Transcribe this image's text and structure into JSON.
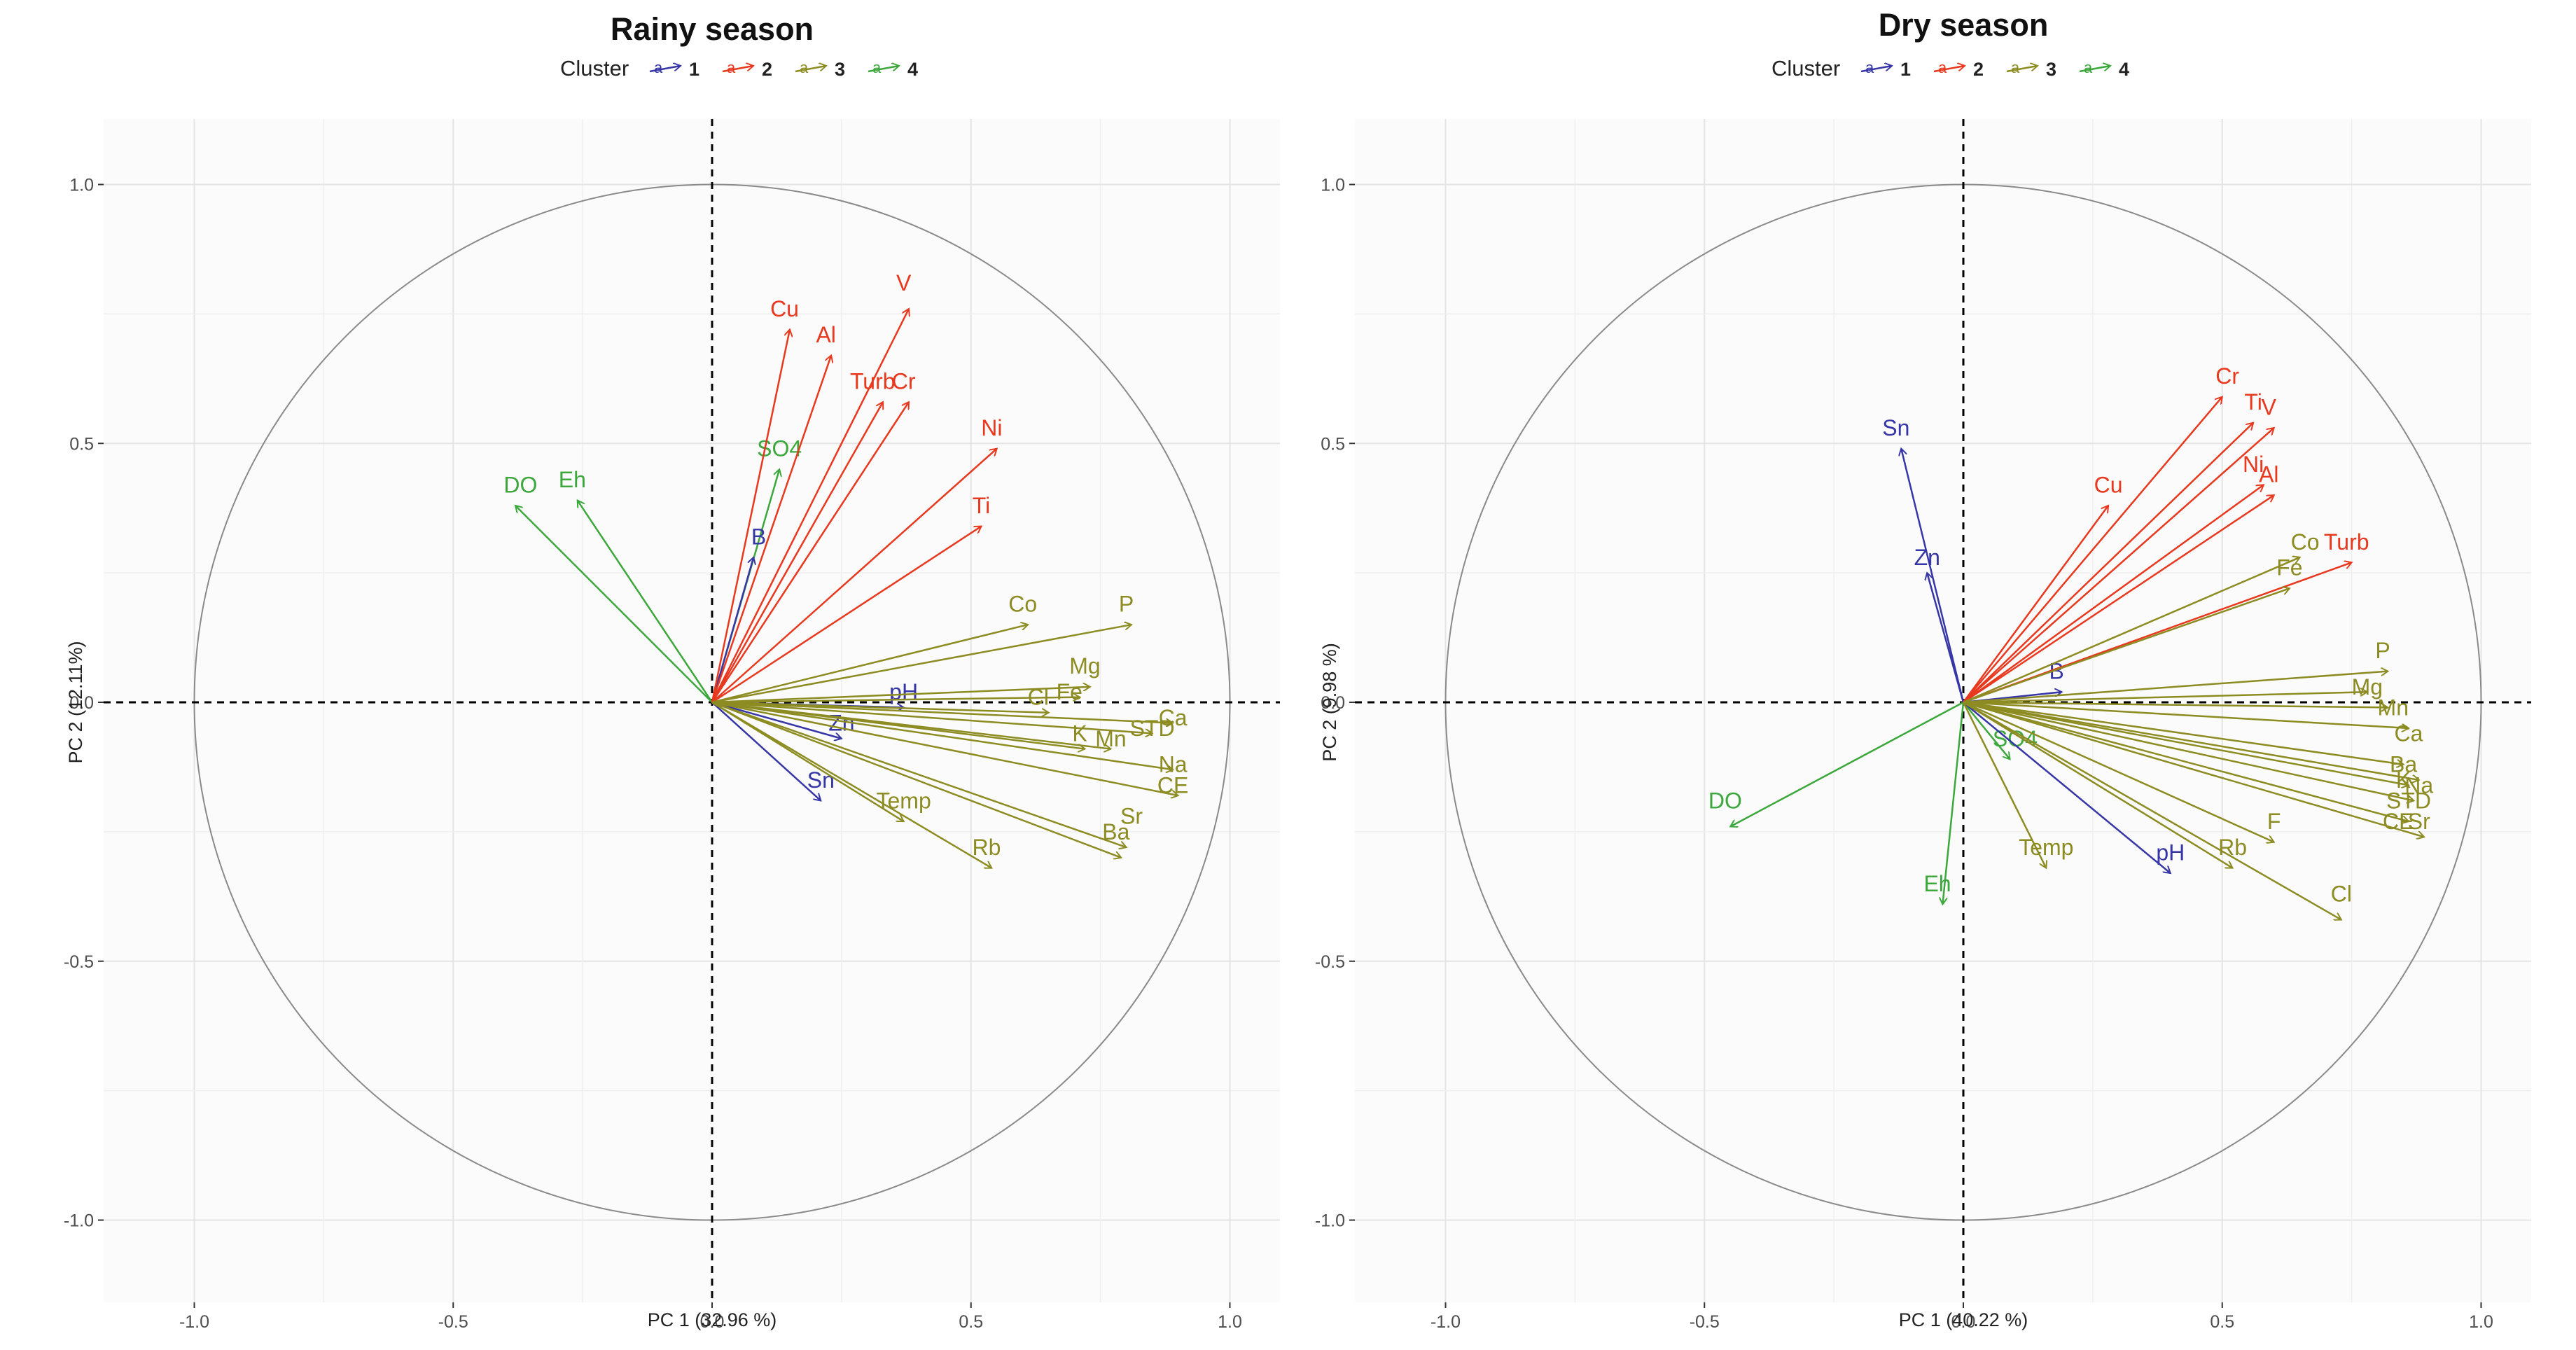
{
  "legend": {
    "title": "Cluster",
    "items": [
      {
        "label": "1",
        "color": "#3636A6"
      },
      {
        "label": "2",
        "color": "#E8381E"
      },
      {
        "label": "3",
        "color": "#8C8C22"
      },
      {
        "label": "4",
        "color": "#3CA83C"
      }
    ]
  },
  "chart_data": [
    {
      "type": "pca-biplot",
      "title": "Rainy season",
      "xlabel": "PC 1 (32.96 %)",
      "ylabel": "PC 2 (12.11%)",
      "xlim": [
        -1.1,
        1.1
      ],
      "ylim": [
        -1.1,
        1.1
      ],
      "xticks": [
        "-1.0",
        "-0.5",
        "0.0",
        "0.5",
        "1.0"
      ],
      "yticks": [
        "-1.0",
        "-0.5",
        "0.0",
        "0.5",
        "1.0"
      ],
      "grid": true,
      "correlation_circle": true,
      "vectors": [
        {
          "label": "DO",
          "cluster": 4,
          "x": -0.38,
          "y": 0.38,
          "lx": -0.37,
          "ly": 0.42
        },
        {
          "label": "Eh",
          "cluster": 4,
          "x": -0.26,
          "y": 0.39,
          "lx": -0.27,
          "ly": 0.43
        },
        {
          "label": "SO4",
          "cluster": 4,
          "x": 0.13,
          "y": 0.45,
          "lx": 0.13,
          "ly": 0.49
        },
        {
          "label": "B",
          "cluster": 1,
          "x": 0.08,
          "y": 0.28,
          "lx": 0.09,
          "ly": 0.32
        },
        {
          "label": "pH",
          "cluster": 1,
          "x": 0.37,
          "y": -0.01,
          "lx": 0.37,
          "ly": 0.02
        },
        {
          "label": "Zn",
          "cluster": 1,
          "x": 0.25,
          "y": -0.07,
          "lx": 0.25,
          "ly": -0.04
        },
        {
          "label": "Sn",
          "cluster": 1,
          "x": 0.21,
          "y": -0.19,
          "lx": 0.21,
          "ly": -0.15
        },
        {
          "label": "Cu",
          "cluster": 2,
          "x": 0.15,
          "y": 0.72,
          "lx": 0.14,
          "ly": 0.76
        },
        {
          "label": "Al",
          "cluster": 2,
          "x": 0.23,
          "y": 0.67,
          "lx": 0.22,
          "ly": 0.71
        },
        {
          "label": "V",
          "cluster": 2,
          "x": 0.38,
          "y": 0.76,
          "lx": 0.37,
          "ly": 0.81
        },
        {
          "label": "Turb",
          "cluster": 2,
          "x": 0.33,
          "y": 0.58,
          "lx": 0.31,
          "ly": 0.62
        },
        {
          "label": "Cr",
          "cluster": 2,
          "x": 0.38,
          "y": 0.58,
          "lx": 0.37,
          "ly": 0.62
        },
        {
          "label": "Ni",
          "cluster": 2,
          "x": 0.55,
          "y": 0.49,
          "lx": 0.54,
          "ly": 0.53
        },
        {
          "label": "Ti",
          "cluster": 2,
          "x": 0.52,
          "y": 0.34,
          "lx": 0.52,
          "ly": 0.38
        },
        {
          "label": "Co",
          "cluster": 3,
          "x": 0.61,
          "y": 0.15,
          "lx": 0.6,
          "ly": 0.19
        },
        {
          "label": "P",
          "cluster": 3,
          "x": 0.81,
          "y": 0.15,
          "lx": 0.8,
          "ly": 0.19
        },
        {
          "label": "Mg",
          "cluster": 3,
          "x": 0.73,
          "y": 0.03,
          "lx": 0.72,
          "ly": 0.07
        },
        {
          "label": "Fe",
          "cluster": 3,
          "x": 0.71,
          "y": 0.01,
          "lx": 0.69,
          "ly": 0.02
        },
        {
          "label": "Cl",
          "cluster": 3,
          "x": 0.65,
          "y": -0.02,
          "lx": 0.63,
          "ly": 0.01
        },
        {
          "label": "K",
          "cluster": 3,
          "x": 0.72,
          "y": -0.09,
          "lx": 0.71,
          "ly": -0.06
        },
        {
          "label": "Mn",
          "cluster": 3,
          "x": 0.77,
          "y": -0.09,
          "lx": 0.77,
          "ly": -0.07
        },
        {
          "label": "STD",
          "cluster": 3,
          "x": 0.85,
          "y": -0.06,
          "lx": 0.85,
          "ly": -0.05
        },
        {
          "label": "Ca",
          "cluster": 3,
          "x": 0.89,
          "y": -0.04,
          "lx": 0.89,
          "ly": -0.03
        },
        {
          "label": "Na",
          "cluster": 3,
          "x": 0.89,
          "y": -0.13,
          "lx": 0.89,
          "ly": -0.12
        },
        {
          "label": "CE",
          "cluster": 3,
          "x": 0.9,
          "y": -0.18,
          "lx": 0.89,
          "ly": -0.16
        },
        {
          "label": "Temp",
          "cluster": 3,
          "x": 0.37,
          "y": -0.23,
          "lx": 0.37,
          "ly": -0.19
        },
        {
          "label": "Rb",
          "cluster": 3,
          "x": 0.54,
          "y": -0.32,
          "lx": 0.53,
          "ly": -0.28
        },
        {
          "label": "Sr",
          "cluster": 3,
          "x": 0.8,
          "y": -0.28,
          "lx": 0.81,
          "ly": -0.22
        },
        {
          "label": "Ba",
          "cluster": 3,
          "x": 0.79,
          "y": -0.3,
          "lx": 0.78,
          "ly": -0.25
        }
      ]
    },
    {
      "type": "pca-biplot",
      "title": "Dry season",
      "xlabel": "PC 1 (40.22 %)",
      "ylabel": "PC 2 (9.98 %)",
      "xlim": [
        -1.1,
        1.1
      ],
      "ylim": [
        -1.1,
        1.1
      ],
      "xticks": [
        "-1.0",
        "-0.5",
        "0.0",
        "0.5",
        "1.0"
      ],
      "yticks": [
        "-1.0",
        "-0.5",
        "0.0",
        "0.5",
        "1.0"
      ],
      "grid": true,
      "correlation_circle": true,
      "vectors": [
        {
          "label": "DO",
          "cluster": 4,
          "x": -0.45,
          "y": -0.24,
          "lx": -0.46,
          "ly": -0.19
        },
        {
          "label": "Eh",
          "cluster": 4,
          "x": -0.04,
          "y": -0.39,
          "lx": -0.05,
          "ly": -0.35
        },
        {
          "label": "SO4",
          "cluster": 4,
          "x": 0.09,
          "y": -0.11,
          "lx": 0.1,
          "ly": -0.07
        },
        {
          "label": "Sn",
          "cluster": 1,
          "x": -0.12,
          "y": 0.49,
          "lx": -0.13,
          "ly": 0.53
        },
        {
          "label": "Zn",
          "cluster": 1,
          "x": -0.07,
          "y": 0.25,
          "lx": -0.07,
          "ly": 0.28
        },
        {
          "label": "B",
          "cluster": 1,
          "x": 0.19,
          "y": 0.02,
          "lx": 0.18,
          "ly": 0.06
        },
        {
          "label": "pH",
          "cluster": 1,
          "x": 0.4,
          "y": -0.33,
          "lx": 0.4,
          "ly": -0.29
        },
        {
          "label": "Cr",
          "cluster": 2,
          "x": 0.5,
          "y": 0.59,
          "lx": 0.51,
          "ly": 0.63
        },
        {
          "label": "Ti",
          "cluster": 2,
          "x": 0.56,
          "y": 0.54,
          "lx": 0.56,
          "ly": 0.58
        },
        {
          "label": "V",
          "cluster": 2,
          "x": 0.6,
          "y": 0.53,
          "lx": 0.59,
          "ly": 0.57
        },
        {
          "label": "Cu",
          "cluster": 2,
          "x": 0.28,
          "y": 0.38,
          "lx": 0.28,
          "ly": 0.42
        },
        {
          "label": "Ni",
          "cluster": 2,
          "x": 0.58,
          "y": 0.42,
          "lx": 0.56,
          "ly": 0.46
        },
        {
          "label": "Al",
          "cluster": 2,
          "x": 0.6,
          "y": 0.4,
          "lx": 0.59,
          "ly": 0.44
        },
        {
          "label": "Turb",
          "cluster": 2,
          "x": 0.75,
          "y": 0.27,
          "lx": 0.74,
          "ly": 0.31
        },
        {
          "label": "Co",
          "cluster": 3,
          "x": 0.65,
          "y": 0.28,
          "lx": 0.66,
          "ly": 0.31
        },
        {
          "label": "Fe",
          "cluster": 3,
          "x": 0.63,
          "y": 0.22,
          "lx": 0.63,
          "ly": 0.26
        },
        {
          "label": "P",
          "cluster": 3,
          "x": 0.82,
          "y": 0.06,
          "lx": 0.81,
          "ly": 0.1
        },
        {
          "label": "Mg",
          "cluster": 3,
          "x": 0.78,
          "y": 0.02,
          "lx": 0.78,
          "ly": 0.03
        },
        {
          "label": "Mn",
          "cluster": 3,
          "x": 0.82,
          "y": -0.01,
          "lx": 0.83,
          "ly": -0.01
        },
        {
          "label": "Ca",
          "cluster": 3,
          "x": 0.86,
          "y": -0.05,
          "lx": 0.86,
          "ly": -0.06
        },
        {
          "label": "Ba",
          "cluster": 3,
          "x": 0.85,
          "y": -0.12,
          "lx": 0.85,
          "ly": -0.12
        },
        {
          "label": "K",
          "cluster": 3,
          "x": 0.86,
          "y": -0.16,
          "lx": 0.85,
          "ly": -0.15
        },
        {
          "label": "Na",
          "cluster": 3,
          "x": 0.88,
          "y": -0.15,
          "lx": 0.88,
          "ly": -0.16
        },
        {
          "label": "STD",
          "cluster": 3,
          "x": 0.87,
          "y": -0.19,
          "lx": 0.86,
          "ly": -0.19
        },
        {
          "label": "CE",
          "cluster": 3,
          "x": 0.86,
          "y": -0.23,
          "lx": 0.84,
          "ly": -0.23
        },
        {
          "label": "Sr",
          "cluster": 3,
          "x": 0.89,
          "y": -0.26,
          "lx": 0.88,
          "ly": -0.23
        },
        {
          "label": "F",
          "cluster": 3,
          "x": 0.6,
          "y": -0.27,
          "lx": 0.6,
          "ly": -0.23
        },
        {
          "label": "Rb",
          "cluster": 3,
          "x": 0.52,
          "y": -0.32,
          "lx": 0.52,
          "ly": -0.28
        },
        {
          "label": "Temp",
          "cluster": 3,
          "x": 0.16,
          "y": -0.32,
          "lx": 0.16,
          "ly": -0.28
        },
        {
          "label": "Cl",
          "cluster": 3,
          "x": 0.73,
          "y": -0.42,
          "lx": 0.73,
          "ly": -0.37
        }
      ]
    }
  ]
}
